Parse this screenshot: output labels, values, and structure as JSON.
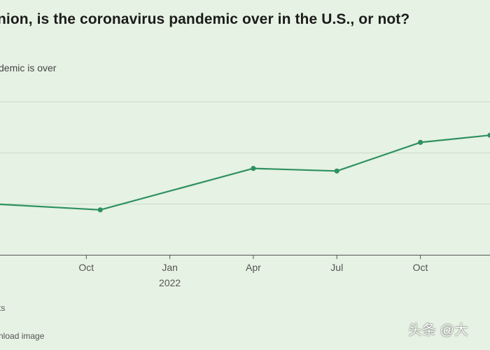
{
  "colors": {
    "line": "#2e9160",
    "grid": "#ccdccb",
    "axis": "#555555"
  },
  "footer": {
    "source": "ts",
    "download": "nload image"
  },
  "watermark": {
    "text": "头条 @大"
  },
  "chart_data": {
    "type": "line",
    "title": "nion, is the coronavirus pandemic over in the U.S., or not?",
    "series_label": "demic is over",
    "xlabel": "",
    "ylabel": "",
    "grid": true,
    "x_ticks": [
      {
        "month": 4,
        "label": "Oct",
        "sublabel": ""
      },
      {
        "month": 7,
        "label": "Jan",
        "sublabel": "2022"
      },
      {
        "month": 10,
        "label": "Apr",
        "sublabel": ""
      },
      {
        "month": 13,
        "label": "Jul",
        "sublabel": ""
      },
      {
        "month": 16,
        "label": "Oct",
        "sublabel": ""
      }
    ],
    "xlim": [
      0.9,
      18.5
    ],
    "ylim": [
      0,
      30
    ],
    "y_gridlines": [
      0,
      10,
      20,
      30
    ],
    "series": [
      {
        "name": "Pandemic is over",
        "points": [
          {
            "month": 0.5,
            "value": 10.0
          },
          {
            "month": 4.5,
            "value": 8.8
          },
          {
            "month": 10.0,
            "value": 16.9
          },
          {
            "month": 13.0,
            "value": 16.4
          },
          {
            "month": 16.0,
            "value": 22.0
          },
          {
            "month": 18.5,
            "value": 23.4
          }
        ]
      }
    ]
  }
}
